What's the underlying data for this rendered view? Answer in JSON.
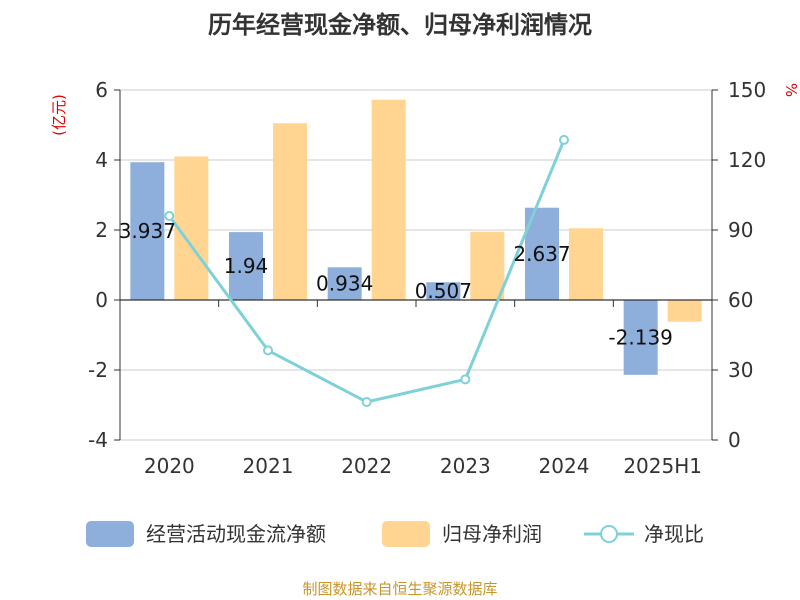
{
  "title": "历年经营现金净额、归母净利润情况",
  "source": "制图数据来自恒生聚源数据库",
  "chart_data": {
    "type": "bar",
    "categories": [
      "2020",
      "2021",
      "2022",
      "2023",
      "2024",
      "2025H1"
    ],
    "y_left": {
      "unit": "(亿元)",
      "ylim": [
        -4,
        6
      ],
      "ticks": [
        6,
        4,
        2,
        0,
        -2,
        -4
      ]
    },
    "y_right": {
      "unit": "%",
      "ylim": [
        0,
        150
      ],
      "ticks": [
        150,
        120,
        90,
        60,
        30,
        0
      ]
    },
    "grid": true,
    "legend_position": "bottom",
    "series": [
      {
        "name": "经营活动现金流净额",
        "kind": "bar",
        "axis": "left",
        "color": "#8eaedb",
        "values": [
          3.937,
          1.94,
          0.934,
          0.507,
          2.637,
          -2.139
        ],
        "labels": [
          "3.937",
          "1.94",
          "0.934",
          "0.507",
          "2.637",
          "-2.139"
        ]
      },
      {
        "name": "归母净利润",
        "kind": "bar",
        "axis": "left",
        "color": "#ffd591",
        "values": [
          4.1,
          5.05,
          5.72,
          1.95,
          2.05,
          -0.62
        ]
      },
      {
        "name": "净现比",
        "kind": "line",
        "axis": "right",
        "color": "#7fd1d8",
        "values": [
          96,
          38.4,
          16.3,
          26,
          128.6,
          null
        ]
      }
    ]
  }
}
